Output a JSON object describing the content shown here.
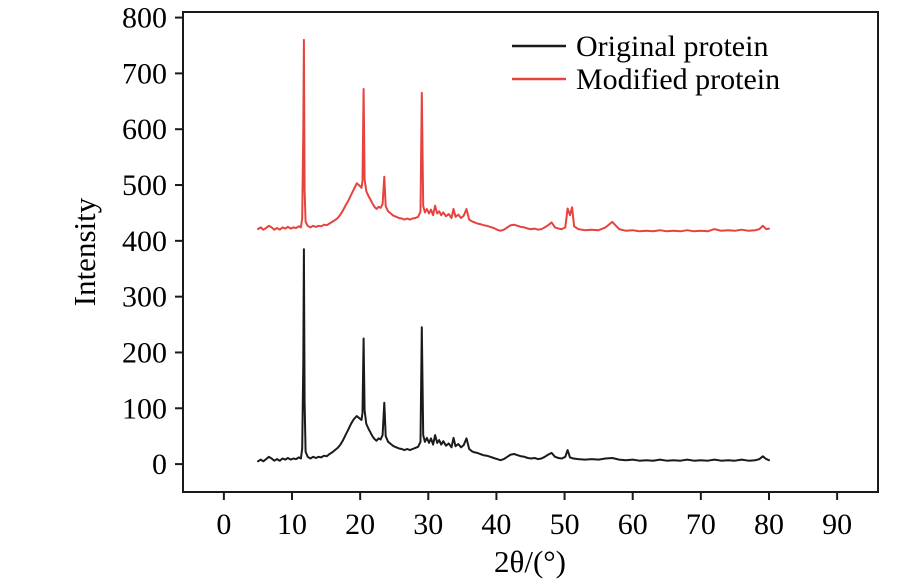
{
  "chart_data": {
    "type": "line",
    "title": "",
    "xlabel": "2θ/(°)",
    "ylabel": "Intensity",
    "xlim": [
      -6,
      96
    ],
    "ylim": [
      -50,
      810
    ],
    "xticks": [
      0,
      10,
      20,
      30,
      40,
      50,
      60,
      70,
      80,
      90
    ],
    "yticks": [
      0,
      100,
      200,
      300,
      400,
      500,
      600,
      700,
      800
    ],
    "grid": false,
    "legend_position": "upper right",
    "series": [
      {
        "name": "Original protein",
        "color": "#1a1a1a",
        "points": [
          [
            5,
            5
          ],
          [
            5.4,
            8
          ],
          [
            5.8,
            5
          ],
          [
            6.2,
            9
          ],
          [
            6.6,
            13
          ],
          [
            7,
            10
          ],
          [
            7.4,
            6
          ],
          [
            7.8,
            9
          ],
          [
            8.2,
            6
          ],
          [
            8.6,
            10
          ],
          [
            9,
            8
          ],
          [
            9.4,
            11
          ],
          [
            9.8,
            8
          ],
          [
            10.2,
            10
          ],
          [
            10.6,
            9
          ],
          [
            11,
            12
          ],
          [
            11.3,
            10
          ],
          [
            11.5,
            28
          ],
          [
            11.65,
            180
          ],
          [
            11.75,
            385
          ],
          [
            11.85,
            110
          ],
          [
            12,
            22
          ],
          [
            12.3,
            13
          ],
          [
            12.7,
            10
          ],
          [
            13.1,
            13
          ],
          [
            13.5,
            11
          ],
          [
            13.9,
            13
          ],
          [
            14.3,
            12
          ],
          [
            14.7,
            15
          ],
          [
            15.1,
            14
          ],
          [
            15.5,
            18
          ],
          [
            15.9,
            21
          ],
          [
            16.3,
            25
          ],
          [
            16.7,
            29
          ],
          [
            17.1,
            35
          ],
          [
            17.5,
            43
          ],
          [
            17.9,
            53
          ],
          [
            18.3,
            63
          ],
          [
            18.7,
            73
          ],
          [
            19.1,
            81
          ],
          [
            19.5,
            86
          ],
          [
            19.9,
            82
          ],
          [
            20.2,
            79
          ],
          [
            20.35,
            92
          ],
          [
            20.5,
            225
          ],
          [
            20.65,
            96
          ],
          [
            20.9,
            72
          ],
          [
            21.2,
            64
          ],
          [
            21.5,
            57
          ],
          [
            21.8,
            50
          ],
          [
            22.1,
            45
          ],
          [
            22.4,
            42
          ],
          [
            22.7,
            46
          ],
          [
            23,
            44
          ],
          [
            23.3,
            52
          ],
          [
            23.55,
            110
          ],
          [
            23.75,
            50
          ],
          [
            24.1,
            40
          ],
          [
            24.5,
            36
          ],
          [
            24.9,
            32
          ],
          [
            25.3,
            30
          ],
          [
            25.7,
            28
          ],
          [
            26.1,
            27
          ],
          [
            26.5,
            25
          ],
          [
            26.9,
            27
          ],
          [
            27.3,
            25
          ],
          [
            27.7,
            27
          ],
          [
            28.1,
            29
          ],
          [
            28.5,
            31
          ],
          [
            28.85,
            40
          ],
          [
            29.05,
            245
          ],
          [
            29.25,
            52
          ],
          [
            29.5,
            40
          ],
          [
            29.8,
            47
          ],
          [
            30.1,
            38
          ],
          [
            30.4,
            46
          ],
          [
            30.7,
            35
          ],
          [
            31,
            52
          ],
          [
            31.3,
            38
          ],
          [
            31.6,
            43
          ],
          [
            31.9,
            35
          ],
          [
            32.2,
            41
          ],
          [
            32.6,
            33
          ],
          [
            33,
            37
          ],
          [
            33.4,
            30
          ],
          [
            33.7,
            47
          ],
          [
            34,
            32
          ],
          [
            34.4,
            36
          ],
          [
            34.8,
            30
          ],
          [
            35.2,
            34
          ],
          [
            35.6,
            46
          ],
          [
            36,
            27
          ],
          [
            36.4,
            23
          ],
          [
            36.8,
            21
          ],
          [
            37.2,
            20
          ],
          [
            37.6,
            18
          ],
          [
            38.1,
            16
          ],
          [
            38.6,
            15
          ],
          [
            39.1,
            13
          ],
          [
            39.6,
            11
          ],
          [
            40.1,
            9
          ],
          [
            40.6,
            7
          ],
          [
            41.1,
            9
          ],
          [
            41.6,
            13
          ],
          [
            42.1,
            17
          ],
          [
            42.6,
            18
          ],
          [
            43.1,
            16
          ],
          [
            43.6,
            14
          ],
          [
            44.1,
            13
          ],
          [
            44.6,
            11
          ],
          [
            45.1,
            10
          ],
          [
            45.6,
            11
          ],
          [
            46.1,
            9
          ],
          [
            46.6,
            10
          ],
          [
            47.1,
            13
          ],
          [
            47.6,
            17
          ],
          [
            48.1,
            20
          ],
          [
            48.6,
            13
          ],
          [
            49.1,
            11
          ],
          [
            49.6,
            10
          ],
          [
            50.1,
            13
          ],
          [
            50.45,
            25
          ],
          [
            50.8,
            12
          ],
          [
            51.3,
            10
          ],
          [
            52,
            9
          ],
          [
            53,
            8
          ],
          [
            54,
            9
          ],
          [
            55,
            8
          ],
          [
            56,
            10
          ],
          [
            57,
            11
          ],
          [
            58,
            8
          ],
          [
            59,
            7
          ],
          [
            60,
            8
          ],
          [
            61,
            6
          ],
          [
            62,
            7
          ],
          [
            63,
            6
          ],
          [
            64,
            8
          ],
          [
            65,
            6
          ],
          [
            66,
            7
          ],
          [
            67,
            6
          ],
          [
            68,
            8
          ],
          [
            69,
            6
          ],
          [
            70,
            7
          ],
          [
            71,
            6
          ],
          [
            72,
            8
          ],
          [
            73,
            6
          ],
          [
            74,
            7
          ],
          [
            75,
            6
          ],
          [
            76,
            8
          ],
          [
            77,
            6
          ],
          [
            78,
            7
          ],
          [
            78.6,
            9
          ],
          [
            79.1,
            14
          ],
          [
            79.6,
            9
          ],
          [
            80,
            7
          ]
        ]
      },
      {
        "name": "Modified protein",
        "color": "#e7433e",
        "points": [
          [
            5,
            421
          ],
          [
            5.4,
            424
          ],
          [
            5.8,
            420
          ],
          [
            6.2,
            423
          ],
          [
            6.6,
            427
          ],
          [
            7,
            424
          ],
          [
            7.4,
            420
          ],
          [
            7.8,
            423
          ],
          [
            8.2,
            420
          ],
          [
            8.6,
            424
          ],
          [
            9,
            422
          ],
          [
            9.4,
            425
          ],
          [
            9.8,
            422
          ],
          [
            10.2,
            424
          ],
          [
            10.6,
            423
          ],
          [
            11,
            426
          ],
          [
            11.3,
            424
          ],
          [
            11.5,
            440
          ],
          [
            11.65,
            600
          ],
          [
            11.75,
            760
          ],
          [
            11.85,
            490
          ],
          [
            12,
            434
          ],
          [
            12.3,
            427
          ],
          [
            12.7,
            424
          ],
          [
            13.1,
            427
          ],
          [
            13.5,
            425
          ],
          [
            13.9,
            427
          ],
          [
            14.3,
            426
          ],
          [
            14.7,
            429
          ],
          [
            15.1,
            428
          ],
          [
            15.5,
            431
          ],
          [
            15.9,
            434
          ],
          [
            16.3,
            437
          ],
          [
            16.7,
            441
          ],
          [
            17.1,
            447
          ],
          [
            17.5,
            455
          ],
          [
            17.9,
            464
          ],
          [
            18.3,
            473
          ],
          [
            18.7,
            483
          ],
          [
            19.1,
            493
          ],
          [
            19.5,
            503
          ],
          [
            19.9,
            499
          ],
          [
            20.2,
            495
          ],
          [
            20.35,
            507
          ],
          [
            20.5,
            672
          ],
          [
            20.65,
            510
          ],
          [
            20.9,
            489
          ],
          [
            21.2,
            481
          ],
          [
            21.5,
            474
          ],
          [
            21.8,
            467
          ],
          [
            22.1,
            461
          ],
          [
            22.4,
            457
          ],
          [
            22.7,
            461
          ],
          [
            23,
            459
          ],
          [
            23.3,
            466
          ],
          [
            23.55,
            515
          ],
          [
            23.75,
            462
          ],
          [
            24.1,
            453
          ],
          [
            24.5,
            449
          ],
          [
            24.9,
            445
          ],
          [
            25.3,
            443
          ],
          [
            25.7,
            441
          ],
          [
            26.1,
            440
          ],
          [
            26.5,
            438
          ],
          [
            26.9,
            440
          ],
          [
            27.3,
            438
          ],
          [
            27.7,
            440
          ],
          [
            28.1,
            441
          ],
          [
            28.5,
            443
          ],
          [
            28.85,
            452
          ],
          [
            29.05,
            665
          ],
          [
            29.25,
            463
          ],
          [
            29.5,
            451
          ],
          [
            29.8,
            457
          ],
          [
            30.1,
            449
          ],
          [
            30.4,
            456
          ],
          [
            30.7,
            446
          ],
          [
            31,
            463
          ],
          [
            31.3,
            449
          ],
          [
            31.6,
            453
          ],
          [
            31.9,
            446
          ],
          [
            32.2,
            451
          ],
          [
            32.6,
            444
          ],
          [
            33,
            448
          ],
          [
            33.4,
            441
          ],
          [
            33.7,
            457
          ],
          [
            34,
            443
          ],
          [
            34.4,
            447
          ],
          [
            34.8,
            441
          ],
          [
            35.2,
            445
          ],
          [
            35.6,
            457
          ],
          [
            36,
            438
          ],
          [
            36.4,
            435
          ],
          [
            36.8,
            433
          ],
          [
            37.2,
            431
          ],
          [
            37.6,
            430
          ],
          [
            38.1,
            428
          ],
          [
            38.6,
            427
          ],
          [
            39.1,
            425
          ],
          [
            39.6,
            423
          ],
          [
            40.1,
            420
          ],
          [
            40.6,
            418
          ],
          [
            41.1,
            420
          ],
          [
            41.6,
            424
          ],
          [
            42.1,
            428
          ],
          [
            42.6,
            429
          ],
          [
            43.1,
            427
          ],
          [
            43.6,
            425
          ],
          [
            44.1,
            424
          ],
          [
            44.6,
            422
          ],
          [
            45.1,
            421
          ],
          [
            45.6,
            422
          ],
          [
            46.1,
            420
          ],
          [
            46.6,
            421
          ],
          [
            47.1,
            424
          ],
          [
            47.6,
            428
          ],
          [
            48.1,
            433
          ],
          [
            48.6,
            424
          ],
          [
            49.1,
            422
          ],
          [
            49.6,
            421
          ],
          [
            50.1,
            424
          ],
          [
            50.45,
            458
          ],
          [
            50.8,
            446
          ],
          [
            51.1,
            460
          ],
          [
            51.4,
            426
          ],
          [
            52,
            421
          ],
          [
            53,
            419
          ],
          [
            54,
            420
          ],
          [
            55,
            419
          ],
          [
            56,
            424
          ],
          [
            57,
            434
          ],
          [
            58,
            421
          ],
          [
            59,
            418
          ],
          [
            60,
            419
          ],
          [
            61,
            417
          ],
          [
            62,
            418
          ],
          [
            63,
            417
          ],
          [
            64,
            419
          ],
          [
            65,
            417
          ],
          [
            66,
            418
          ],
          [
            67,
            417
          ],
          [
            68,
            419
          ],
          [
            69,
            417
          ],
          [
            70,
            418
          ],
          [
            71,
            417
          ],
          [
            72,
            421
          ],
          [
            73,
            418
          ],
          [
            74,
            419
          ],
          [
            75,
            418
          ],
          [
            76,
            420
          ],
          [
            77,
            418
          ],
          [
            78,
            419
          ],
          [
            78.6,
            421
          ],
          [
            79.1,
            427
          ],
          [
            79.6,
            421
          ],
          [
            80,
            422
          ]
        ]
      }
    ]
  }
}
